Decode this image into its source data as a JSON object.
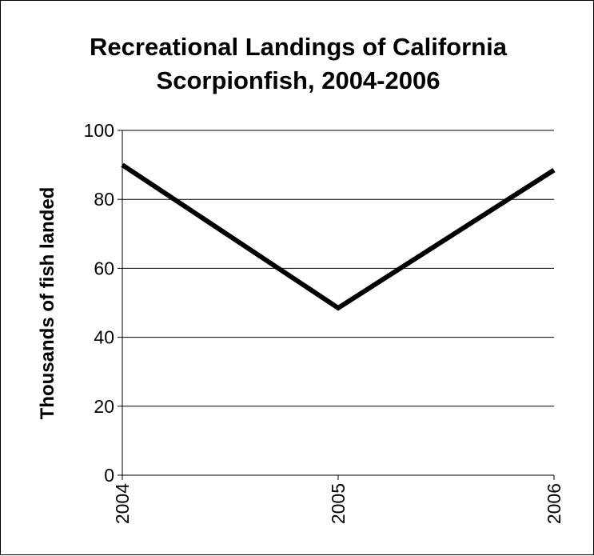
{
  "chart_data": {
    "type": "line",
    "title_lines": [
      "Recreational Landings of California",
      "Scorpionfish, 2004-2006"
    ],
    "xlabel": "",
    "ylabel": "Thousands of fish landed",
    "categories": [
      "2004",
      "2005",
      "2006"
    ],
    "series": [
      {
        "values": [
          90,
          48.5,
          88.5
        ]
      }
    ],
    "ylim": [
      0,
      100
    ],
    "yticks": [
      0,
      20,
      40,
      60,
      80,
      100
    ],
    "ytick_labels": [
      "0",
      "20",
      "40",
      "60",
      "80",
      "100"
    ],
    "grid": true,
    "legend": "none",
    "line_color": "#000000",
    "grid_color": "#000000"
  }
}
